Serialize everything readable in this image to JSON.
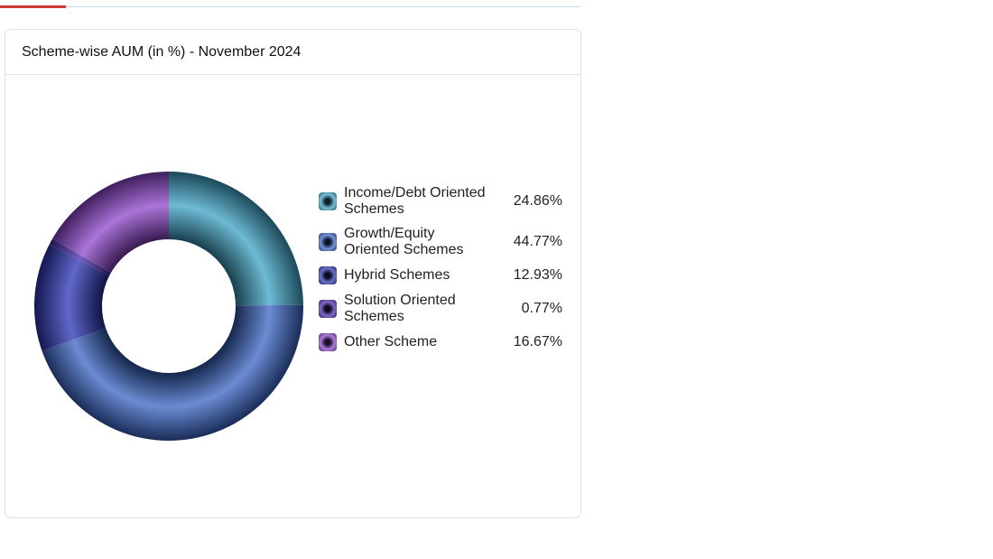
{
  "card": {
    "title": "Scheme-wise AUM (in %) - November 2024"
  },
  "chart_data": {
    "type": "pie",
    "subtype": "donut",
    "title": "Scheme-wise AUM (in %) - November 2024",
    "legend_position": "right",
    "categories": [
      "Income/Debt Oriented Schemes",
      "Growth/Equity Oriented Schemes",
      "Hybrid Schemes",
      "Solution Oriented Schemes",
      "Other Scheme"
    ],
    "values": [
      24.86,
      44.77,
      12.93,
      0.77,
      16.67
    ],
    "labels": [
      "24.86%",
      "44.77%",
      "12.93%",
      "0.77%",
      "16.67%"
    ],
    "colors": [
      "#3ea3c6",
      "#3a64c4",
      "#2b34b4",
      "#4a2cae",
      "#8e45cc"
    ]
  }
}
